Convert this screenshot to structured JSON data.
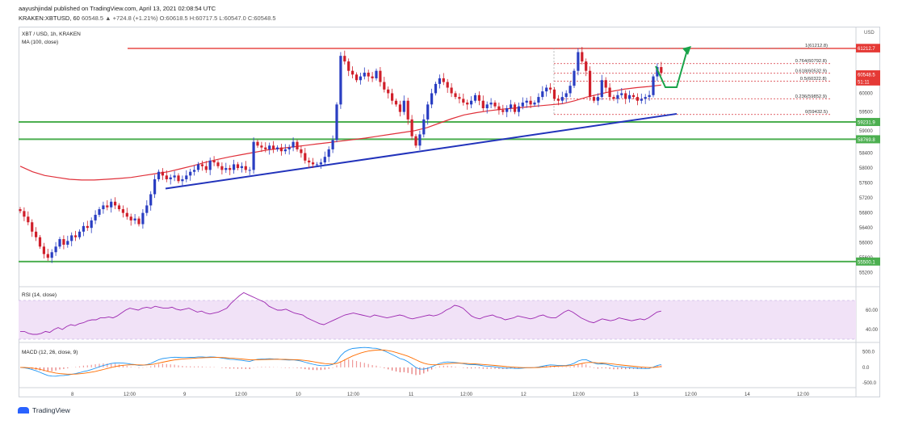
{
  "header": {
    "publisher": "aayushjindal published on TradingView.com, April 13, 2021 02:08:54 UTC",
    "symbol_line": "KRAKEN:XBTUSD, 60",
    "change": "60548.5 ▲ +724.8 (+1.21%)",
    "ohlc": "O:60618.5 H:60717.5 L:60547.0 C:60548.5"
  },
  "footer": {
    "logo_text": "TradingView"
  },
  "colors": {
    "up": "#2a3ec2",
    "down": "#d01f2a",
    "ma": "#e0303a",
    "trend": "#2233bb",
    "support": "#4caf50",
    "resistance": "#e53935",
    "fib": "#d8323a",
    "rsi": "#9c27b0",
    "rsi_band": "#f1e2f7",
    "macd": "#2196f3",
    "signal": "#ff6d00",
    "arrow": "#1aa34a"
  },
  "chart_data": {
    "type": "candlestick",
    "symbol_label": "XBT / USD, 1h, KRAKEN",
    "indicator_label": "MA (100, close)",
    "currency": "USD",
    "ylim": [
      55000,
      61500
    ],
    "y_ticks": [
      55200,
      55600,
      56000,
      56400,
      56800,
      57200,
      57600,
      58000,
      58400,
      59000,
      59500,
      60000,
      60500
    ],
    "x_ticks": [
      "8",
      "12:00",
      "9",
      "12:00",
      "10",
      "12:00",
      "11",
      "12:00",
      "12",
      "12:00",
      "13",
      "12:00",
      "14",
      "12:00"
    ],
    "candles_step_per_hour": 1,
    "closes": [
      56850,
      56700,
      56550,
      56300,
      56150,
      55900,
      55700,
      55600,
      55750,
      55900,
      56100,
      55950,
      56050,
      56200,
      56150,
      56300,
      56450,
      56400,
      56600,
      56750,
      56900,
      57000,
      56950,
      57100,
      57000,
      56900,
      56800,
      56700,
      56600,
      56650,
      56500,
      56800,
      57000,
      57300,
      57700,
      57900,
      57800,
      57700,
      57750,
      57800,
      57650,
      57700,
      57800,
      57900,
      57950,
      58100,
      58050,
      57950,
      58200,
      58150,
      58050,
      57950,
      58000,
      57950,
      58100,
      58000,
      58050,
      57950,
      57950,
      58700,
      58600,
      58550,
      58500,
      58600,
      58500,
      58550,
      58450,
      58500,
      58550,
      58700,
      58500,
      58400,
      58200,
      58150,
      58100,
      58100,
      58150,
      58300,
      58500,
      58750,
      59700,
      61000,
      60850,
      60600,
      60500,
      60350,
      60450,
      60550,
      60450,
      60400,
      60600,
      60300,
      60100,
      60000,
      59800,
      59700,
      59500,
      59800,
      59300,
      58850,
      58600,
      58900,
      59300,
      59700,
      60000,
      60250,
      60400,
      60300,
      60150,
      60000,
      59900,
      59850,
      59750,
      59700,
      59800,
      59950,
      59800,
      59600,
      59700,
      59750,
      59650,
      59550,
      59500,
      59600,
      59700,
      59500,
      59650,
      59750,
      59800,
      59700,
      59750,
      59900,
      60050,
      60150,
      60100,
      59850,
      59800,
      59900,
      60000,
      60200,
      60600,
      61100,
      60850,
      60600,
      59900,
      59800,
      59900,
      60350,
      60150,
      59900,
      59850,
      59950,
      60000,
      59850,
      59950,
      59900,
      59800,
      59850,
      59900,
      59950,
      60450,
      60700,
      60548.5
    ],
    "ma_values": [
      58050,
      57900,
      57800,
      57750,
      57700,
      57680,
      57680,
      57700,
      57720,
      57750,
      57800,
      57850,
      57900,
      57980,
      58060,
      58150,
      58230,
      58300,
      58360,
      58420,
      58480,
      58520,
      58560,
      58600,
      58640,
      58680,
      58720,
      58760,
      58800,
      58850,
      58900,
      58950,
      59000,
      59080,
      59200,
      59320,
      59420,
      59480,
      59530,
      59570,
      59600,
      59630,
      59660,
      59690,
      59720,
      59800,
      59900,
      59980,
      60050,
      60110,
      60150,
      60180,
      60220
    ],
    "ma_label": "MA (100)",
    "horizontal_levels": [
      {
        "label": "61200.0",
        "value": 61200,
        "kind": "resistance"
      },
      {
        "label": "59231.9",
        "value": 59231.9,
        "kind": "support"
      },
      {
        "label": "58769.8",
        "value": 58769.8,
        "kind": "support"
      },
      {
        "label": "55500.1",
        "value": 55500.1,
        "kind": "support"
      }
    ],
    "fib_levels": [
      {
        "label": "1(61212.8)",
        "value": 61212.8
      },
      {
        "label": "0.764(60792.8)",
        "value": 60792.8
      },
      {
        "label": "0.618(60532.9)",
        "value": 60532.9
      },
      {
        "label": "0.5(60322.8)",
        "value": 60322.8
      },
      {
        "label": "0.236(59852.9)",
        "value": 59852.9
      },
      {
        "label": "0(59432.5)",
        "value": 59432.5
      }
    ],
    "price_tags": [
      {
        "label": "61212.7",
        "value": 61212.7,
        "color": "#e53935"
      },
      {
        "label": "60548.5",
        "value": 60548.5,
        "color": "#e53935"
      },
      {
        "label": "51:11",
        "value": 60380,
        "color": "#e53935"
      }
    ],
    "rsi": {
      "label": "RSI (14, close)",
      "ylim": [
        30,
        80
      ],
      "ticks": [
        40,
        60
      ],
      "band": [
        30,
        70
      ],
      "values": [
        38,
        38,
        36,
        35,
        35,
        36,
        38,
        37,
        40,
        42,
        40,
        43,
        45,
        44,
        46,
        47,
        49,
        50,
        50,
        52,
        52,
        53,
        52,
        54,
        57,
        60,
        62,
        61,
        60,
        62,
        63,
        62,
        64,
        63,
        62,
        62,
        63,
        61,
        60,
        61,
        62,
        60,
        58,
        59,
        57,
        56,
        57,
        58,
        60,
        62,
        67,
        71,
        75,
        78,
        76,
        74,
        72,
        70,
        68,
        64,
        62,
        60,
        60,
        61,
        59,
        57,
        56,
        55,
        52,
        50,
        48,
        46,
        45,
        47,
        49,
        51,
        53,
        55,
        56,
        57,
        56,
        55,
        54,
        53,
        55,
        54,
        53,
        52,
        53,
        54,
        55,
        54,
        52,
        51,
        52,
        53,
        54,
        55,
        54,
        55,
        57,
        60,
        62,
        65,
        64,
        62,
        58,
        54,
        52,
        51,
        53,
        54,
        55,
        53,
        52,
        50,
        51,
        52,
        54,
        53,
        52,
        51,
        52,
        54,
        55,
        53,
        52,
        52,
        55,
        58,
        60,
        58,
        55,
        52,
        50,
        48,
        47,
        49,
        51,
        50,
        49,
        50,
        52,
        51,
        50,
        49,
        50,
        51,
        50,
        52,
        55,
        58,
        59
      ]
    },
    "macd": {
      "label": "MACD (12, 26, close, 9)",
      "ylim": [
        -600,
        700
      ],
      "ticks": [
        500,
        0,
        -500
      ],
      "tick_labels": [
        "500.0",
        "0.0",
        "-500.0"
      ]
    }
  }
}
